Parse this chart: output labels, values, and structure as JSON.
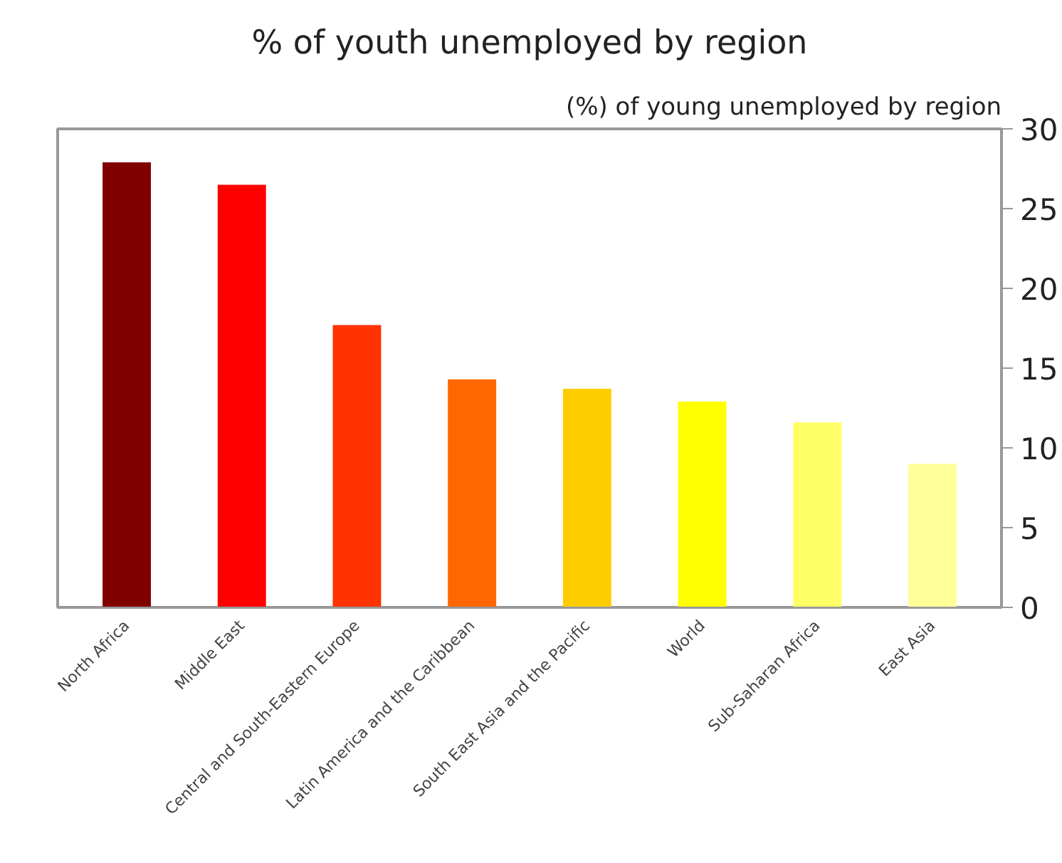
{
  "chart_data": {
    "type": "bar",
    "title": "% of youth unemployed by region",
    "ylabel": "(%) of young unemployed by region",
    "categories": [
      "North Africa",
      "Middle East",
      "Central and South-Eastern Europe",
      "Latin America and the Caribbean",
      "South East Asia and the Pacific",
      "World",
      "Sub-Saharan Africa",
      "East Asia"
    ],
    "values": [
      27.9,
      26.5,
      17.7,
      14.3,
      13.7,
      12.9,
      11.6,
      9.0
    ],
    "colors": [
      "#800000",
      "#ff0000",
      "#ff3300",
      "#ff6600",
      "#ffcc00",
      "#ffff00",
      "#ffff66",
      "#ffff99"
    ],
    "ylim": [
      0,
      30
    ],
    "yticks": [
      0,
      5,
      10,
      15,
      20,
      25,
      30
    ],
    "grid": false
  }
}
